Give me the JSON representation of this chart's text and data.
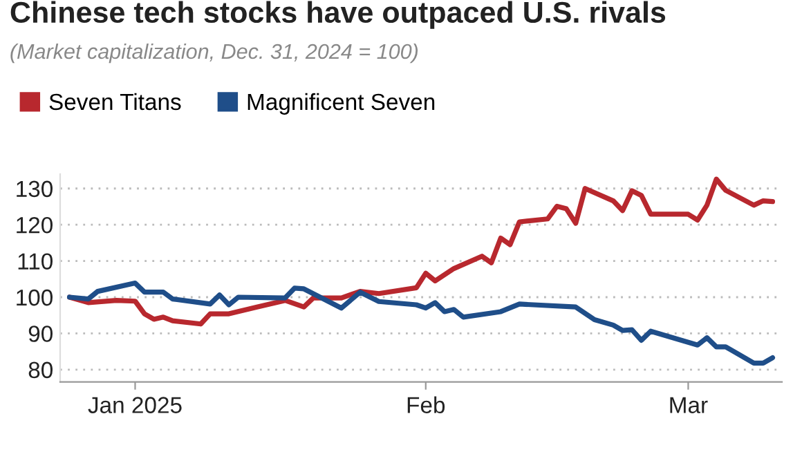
{
  "chart_data": {
    "type": "line",
    "title": "Chinese tech stocks have outpaced U.S. rivals",
    "subtitle": "(Market capitalization, Dec. 31, 2024 = 100)",
    "xlim": [
      "2024-12-24",
      "2025-03-11"
    ],
    "xticks": [
      {
        "value": "2025-01-01",
        "label": "Jan 2025"
      },
      {
        "value": "2025-02-01",
        "label": "Feb"
      },
      {
        "value": "2025-03-01",
        "label": "Mar"
      }
    ],
    "ylim": [
      76.6,
      134
    ],
    "yticks": [
      80,
      90,
      100,
      110,
      120,
      130
    ],
    "grid": "y",
    "legend": "top left",
    "marker": "none",
    "line_style": "solid",
    "series": [
      {
        "name": "Seven Titans",
        "color": "#b8282e",
        "x": [
          "2024-12-25",
          "2024-12-27",
          "2024-12-30",
          "2025-01-01",
          "2025-01-02",
          "2025-01-03",
          "2025-01-04",
          "2025-01-05",
          "2025-01-08",
          "2025-01-09",
          "2025-01-11",
          "2025-01-14",
          "2025-01-17",
          "2025-01-19",
          "2025-01-20",
          "2025-01-23",
          "2025-01-25",
          "2025-01-27",
          "2025-01-31",
          "2025-02-01",
          "2025-02-02",
          "2025-02-04",
          "2025-02-07",
          "2025-02-08",
          "2025-02-09",
          "2025-02-10",
          "2025-02-11",
          "2025-02-14",
          "2025-02-15",
          "2025-02-16",
          "2025-02-17",
          "2025-02-18",
          "2025-02-21",
          "2025-02-22",
          "2025-02-23",
          "2025-02-24",
          "2025-02-25",
          "2025-03-01",
          "2025-03-02",
          "2025-03-03",
          "2025-03-04",
          "2025-03-05",
          "2025-03-08",
          "2025-03-09",
          "2025-03-10"
        ],
        "values": [
          100,
          98.5,
          99.1,
          98.9,
          95.4,
          93.9,
          94.5,
          93.5,
          92.6,
          95.4,
          95.4,
          97.3,
          99.1,
          97.3,
          99.8,
          99.8,
          101.6,
          101,
          102.6,
          106.6,
          104.5,
          107.9,
          111.3,
          109.5,
          116.3,
          114.5,
          120.8,
          121.6,
          125.1,
          124.4,
          120.4,
          130,
          126.6,
          123.9,
          129.4,
          128.1,
          122.9,
          122.9,
          121.3,
          125.4,
          132.6,
          129.5,
          125.4,
          126.6,
          126.4
        ]
      },
      {
        "name": "Magnificent Seven",
        "color": "#1f4e89",
        "x": [
          "2024-12-25",
          "2024-12-27",
          "2024-12-28",
          "2025-01-01",
          "2025-01-02",
          "2025-01-04",
          "2025-01-05",
          "2025-01-09",
          "2025-01-10",
          "2025-01-11",
          "2025-01-12",
          "2025-01-17",
          "2025-01-18",
          "2025-01-19",
          "2025-01-23",
          "2025-01-25",
          "2025-01-27",
          "2025-01-31",
          "2025-02-01",
          "2025-02-02",
          "2025-02-03",
          "2025-02-04",
          "2025-02-05",
          "2025-02-09",
          "2025-02-11",
          "2025-02-17",
          "2025-02-19",
          "2025-02-21",
          "2025-02-22",
          "2025-02-23",
          "2025-02-24",
          "2025-02-25",
          "2025-03-02",
          "2025-03-03",
          "2025-03-04",
          "2025-03-05",
          "2025-03-08",
          "2025-03-09",
          "2025-03-10"
        ],
        "values": [
          100,
          99.5,
          101.6,
          103.9,
          101.4,
          101.4,
          99.5,
          98.1,
          100.6,
          97.9,
          100,
          99.8,
          102.5,
          102.3,
          97,
          101.4,
          98.8,
          97.9,
          97,
          98.5,
          96,
          96.6,
          94.5,
          96,
          98.1,
          97.3,
          93.8,
          92.3,
          90.8,
          91,
          88.1,
          90.6,
          86.8,
          88.8,
          86.3,
          86.3,
          81.8,
          81.8,
          83.3
        ]
      }
    ]
  }
}
